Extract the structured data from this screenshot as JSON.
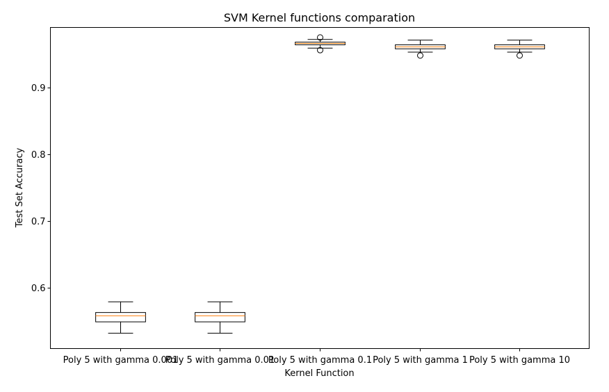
{
  "chart_data": {
    "type": "boxplot",
    "title": "SVM Kernel functions comparation",
    "xlabel": "Kernel Function",
    "ylabel": "Test Set Accuracy",
    "ylim": [
      0.509,
      0.99
    ],
    "yticks": [
      0.6,
      0.7,
      0.8,
      0.9
    ],
    "ytick_labels": [
      "0.6",
      "0.7",
      "0.8",
      "0.9"
    ],
    "grid": false,
    "median_color": "#ff7f0e",
    "categories": [
      "Poly 5 with gamma 0.001",
      "Poly 5 with gamma 0.01",
      "Poly 5 with gamma 0.1",
      "Poly 5 with gamma 1",
      "Poly 5 with gamma 10"
    ],
    "boxes": [
      {
        "whisker_low": 0.532,
        "q1": 0.549,
        "median": 0.558,
        "q3": 0.563,
        "whisker_high": 0.579,
        "fliers": []
      },
      {
        "whisker_low": 0.532,
        "q1": 0.549,
        "median": 0.558,
        "q3": 0.563,
        "whisker_high": 0.579,
        "fliers": []
      },
      {
        "whisker_low": 0.959,
        "q1": 0.964,
        "median": 0.966,
        "q3": 0.968,
        "whisker_high": 0.972,
        "fliers": [
          0.956,
          0.975
        ]
      },
      {
        "whisker_low": 0.953,
        "q1": 0.958,
        "median": 0.961,
        "q3": 0.964,
        "whisker_high": 0.971,
        "fliers": [
          0.948
        ]
      },
      {
        "whisker_low": 0.953,
        "q1": 0.958,
        "median": 0.961,
        "q3": 0.964,
        "whisker_high": 0.971,
        "fliers": [
          0.948
        ]
      }
    ]
  }
}
